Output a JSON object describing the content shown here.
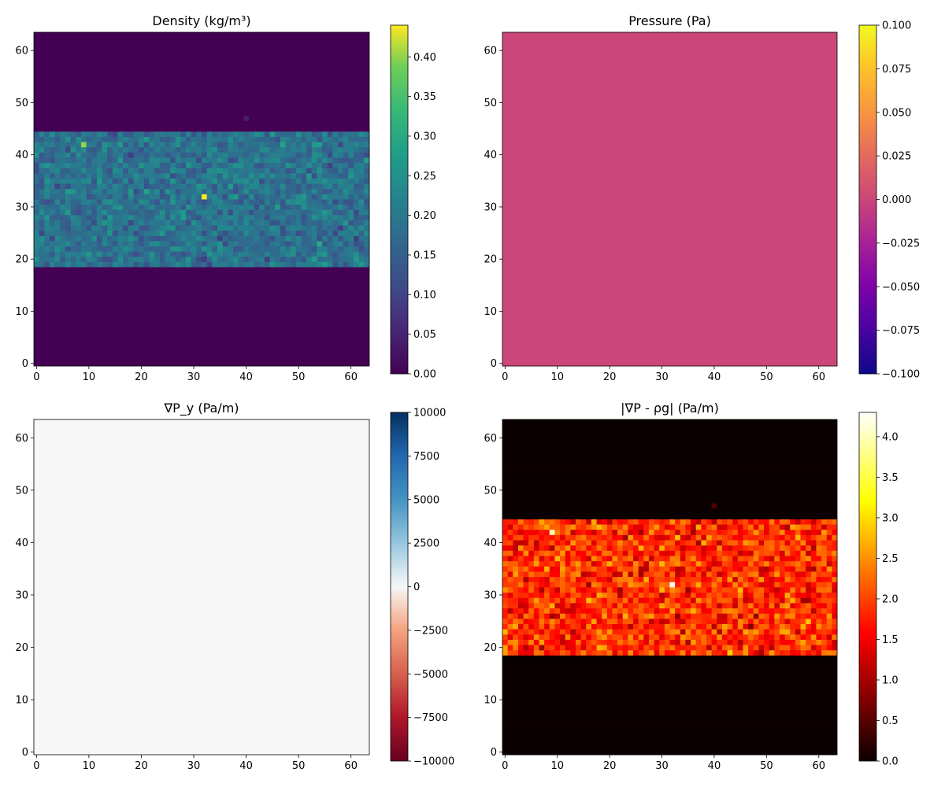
{
  "chart_data": [
    {
      "type": "heatmap",
      "title": "Density (kg/m³)",
      "colormap": "viridis",
      "grid_size": [
        64,
        64
      ],
      "xlim": [
        -0.5,
        63.5
      ],
      "ylim": [
        -0.5,
        63.5
      ],
      "xticks": [
        0,
        10,
        20,
        30,
        40,
        50,
        60
      ],
      "yticks": [
        0,
        10,
        20,
        30,
        40,
        50,
        60
      ],
      "colorbar": {
        "range": [
          0.0,
          0.44
        ],
        "ticks": [
          0.0,
          0.05,
          0.1,
          0.15,
          0.2,
          0.25,
          0.3,
          0.35,
          0.4
        ],
        "tick_labels": [
          "0.00",
          "0.05",
          "0.10",
          "0.15",
          "0.20",
          "0.25",
          "0.30",
          "0.35",
          "0.40"
        ]
      },
      "regions": [
        {
          "rows": [
            0,
            18
          ],
          "value": 0.0
        },
        {
          "rows": [
            19,
            44
          ],
          "value_range": [
            0.08,
            0.3
          ],
          "mean": 0.17,
          "description": "noisy band"
        },
        {
          "rows": [
            45,
            63
          ],
          "value": 0.0
        }
      ],
      "outliers": [
        {
          "x": 9,
          "y": 42,
          "value": 0.4
        },
        {
          "x": 32,
          "y": 32,
          "value": 0.44
        },
        {
          "x": 40,
          "y": 47,
          "value": 0.04
        }
      ]
    },
    {
      "type": "heatmap",
      "title": "Pressure (Pa)",
      "colormap": "plasma",
      "grid_size": [
        64,
        64
      ],
      "xlim": [
        -0.5,
        63.5
      ],
      "ylim": [
        -0.5,
        63.5
      ],
      "xticks": [
        0,
        10,
        20,
        30,
        40,
        50,
        60
      ],
      "yticks": [
        0,
        10,
        20,
        30,
        40,
        50,
        60
      ],
      "colorbar": {
        "range": [
          -0.1,
          0.1
        ],
        "ticks": [
          -0.1,
          -0.075,
          -0.05,
          -0.025,
          0.0,
          0.025,
          0.05,
          0.075,
          0.1
        ],
        "tick_labels": [
          "−0.100",
          "−0.075",
          "−0.050",
          "−0.025",
          "0.000",
          "0.025",
          "0.050",
          "0.075",
          "0.100"
        ]
      },
      "regions": [
        {
          "rows": [
            0,
            63
          ],
          "value": 0.0
        }
      ]
    },
    {
      "type": "heatmap",
      "title": "∇P_y (Pa/m)",
      "colormap": "RdBu",
      "grid_size": [
        64,
        64
      ],
      "xlim": [
        -0.5,
        63.5
      ],
      "ylim": [
        -0.5,
        63.5
      ],
      "xticks": [
        0,
        10,
        20,
        30,
        40,
        50,
        60
      ],
      "yticks": [
        0,
        10,
        20,
        30,
        40,
        50,
        60
      ],
      "colorbar": {
        "range": [
          -10000,
          10000
        ],
        "ticks": [
          -10000,
          -7500,
          -5000,
          -2500,
          0,
          2500,
          5000,
          7500,
          10000
        ],
        "tick_labels": [
          "−10000",
          "−7500",
          "−5000",
          "−2500",
          "0",
          "2500",
          "5000",
          "7500",
          "10000"
        ]
      },
      "regions": [
        {
          "rows": [
            0,
            63
          ],
          "value": 0
        }
      ]
    },
    {
      "type": "heatmap",
      "title": "|∇P - ρg| (Pa/m)",
      "colormap": "hot",
      "grid_size": [
        64,
        64
      ],
      "xlim": [
        -0.5,
        63.5
      ],
      "ylim": [
        -0.5,
        63.5
      ],
      "xticks": [
        0,
        10,
        20,
        30,
        40,
        50,
        60
      ],
      "yticks": [
        0,
        10,
        20,
        30,
        40,
        50,
        60
      ],
      "colorbar": {
        "range": [
          0.0,
          4.3
        ],
        "ticks": [
          0.0,
          0.5,
          1.0,
          1.5,
          2.0,
          2.5,
          3.0,
          3.5,
          4.0
        ],
        "tick_labels": [
          "0.0",
          "0.5",
          "1.0",
          "1.5",
          "2.0",
          "2.5",
          "3.0",
          "3.5",
          "4.0"
        ]
      },
      "regions": [
        {
          "rows": [
            0,
            18
          ],
          "value": 0.0
        },
        {
          "rows": [
            19,
            44
          ],
          "value_range": [
            0.7,
            3.0
          ],
          "mean": 1.7,
          "description": "noisy band"
        },
        {
          "rows": [
            45,
            63
          ],
          "value": 0.0
        }
      ],
      "outliers": [
        {
          "x": 9,
          "y": 42,
          "value": 4.0
        },
        {
          "x": 32,
          "y": 32,
          "value": 4.3
        },
        {
          "x": 40,
          "y": 47,
          "value": 0.4
        }
      ]
    }
  ]
}
